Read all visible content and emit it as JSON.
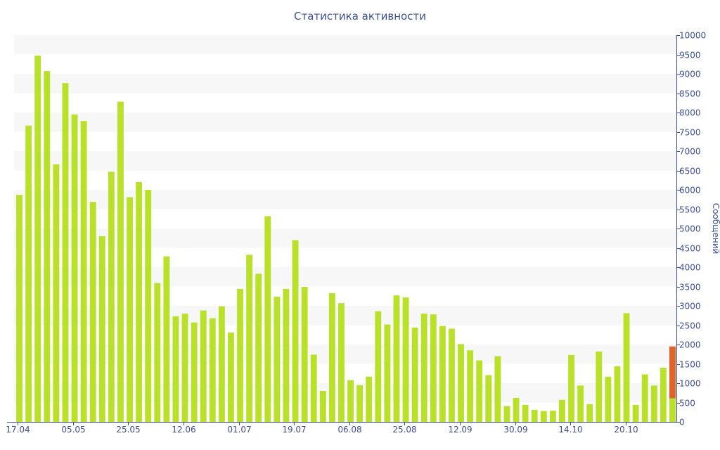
{
  "chart_data": {
    "type": "bar",
    "title": "Статистика активности",
    "ylabel": "Сообщений",
    "xlabel": "",
    "ylim": [
      0,
      10000
    ],
    "y_ticks": [
      0,
      500,
      1000,
      1500,
      2000,
      2500,
      3000,
      3500,
      4000,
      4500,
      5000,
      5500,
      6000,
      6500,
      7000,
      7500,
      8000,
      8500,
      9000,
      9500,
      10000
    ],
    "y_axis_side": "right",
    "grid": "alternating horizontal bands",
    "x_tick_labels": [
      "17.04",
      "05.05",
      "25.05",
      "12.06",
      "01.07",
      "19.07",
      "06.08",
      "25.08",
      "12.09",
      "30.09",
      "14.10",
      "20.10"
    ],
    "colors": {
      "bar": "#b9e12a",
      "highlight": "#e0632a",
      "band": "#f7f7f7",
      "text": "#3d4f8f"
    },
    "series": [
      {
        "values": [
          5870,
          7660,
          9470,
          9070,
          6660,
          8760,
          7950,
          7780,
          5690,
          4800,
          6470,
          8280,
          5810,
          6200,
          6000,
          3590,
          4280,
          2730,
          2800,
          2570,
          2880,
          2680,
          2990,
          2310,
          3440,
          4320,
          3830,
          5320,
          3240,
          3440,
          4700,
          3490,
          1740,
          800,
          3330,
          3070,
          1080,
          950,
          1170,
          2860,
          2520,
          3270,
          3220,
          2440,
          2800,
          2780,
          2480,
          2410,
          2010,
          1850,
          1590,
          1210,
          1700,
          410,
          620,
          440,
          310,
          280,
          290,
          570,
          1730,
          940,
          460,
          1820,
          1170,
          1440,
          2810,
          440,
          1230,
          940,
          1400,
          610
        ]
      }
    ],
    "last_bar_extra": 1340
  }
}
